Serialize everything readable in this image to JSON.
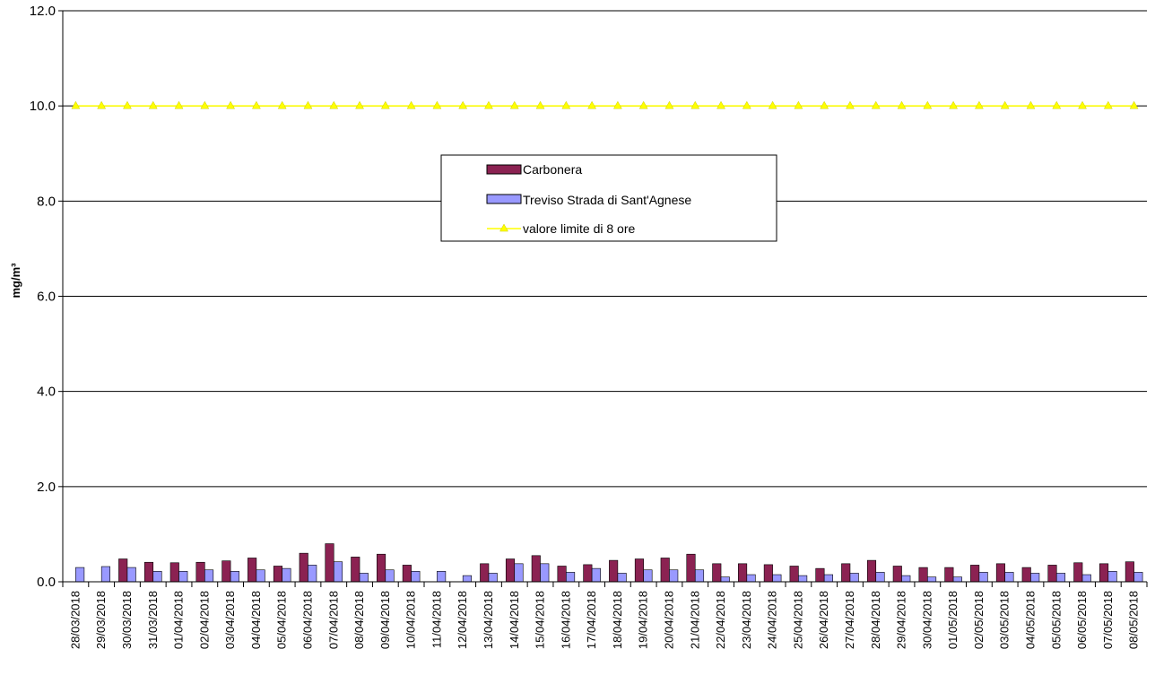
{
  "chart_data": {
    "type": "bar",
    "ylabel": "mg/m³",
    "ylim": [
      0,
      12
    ],
    "yticks": [
      "0.0",
      "2.0",
      "4.0",
      "6.0",
      "8.0",
      "10.0",
      "12.0"
    ],
    "grid": true,
    "legend_position": "top-center",
    "categories": [
      "28/03/2018",
      "29/03/2018",
      "30/03/2018",
      "31/03/2018",
      "01/04/2018",
      "02/04/2018",
      "03/04/2018",
      "04/04/2018",
      "05/04/2018",
      "06/04/2018",
      "07/04/2018",
      "08/04/2018",
      "09/04/2018",
      "10/04/2018",
      "11/04/2018",
      "12/04/2018",
      "13/04/2018",
      "14/04/2018",
      "15/04/2018",
      "16/04/2018",
      "17/04/2018",
      "18/04/2018",
      "19/04/2018",
      "20/04/2018",
      "21/04/2018",
      "22/04/2018",
      "23/04/2018",
      "24/04/2018",
      "25/04/2018",
      "26/04/2018",
      "27/04/2018",
      "28/04/2018",
      "29/04/2018",
      "30/04/2018",
      "01/05/2018",
      "02/05/2018",
      "03/05/2018",
      "04/05/2018",
      "05/05/2018",
      "06/05/2018",
      "07/05/2018",
      "08/05/2018"
    ],
    "series": [
      {
        "name": "Carbonera",
        "kind": "bar",
        "color": "#8B2252",
        "values": [
          null,
          null,
          0.48,
          0.41,
          0.4,
          0.41,
          0.44,
          0.5,
          0.33,
          0.6,
          0.8,
          0.52,
          0.58,
          0.35,
          null,
          null,
          0.38,
          0.48,
          0.55,
          0.33,
          0.36,
          0.45,
          0.48,
          0.5,
          0.58,
          0.38,
          0.38,
          0.36,
          0.33,
          0.28,
          0.38,
          0.45,
          0.33,
          0.3,
          0.3,
          0.35,
          0.38,
          0.3,
          0.35,
          0.4,
          0.38,
          0.42
        ]
      },
      {
        "name": "Treviso Strada di Sant'Agnese",
        "kind": "bar",
        "color": "#9999FF",
        "values": [
          0.3,
          0.32,
          0.3,
          0.22,
          0.22,
          0.25,
          0.22,
          0.25,
          0.28,
          0.35,
          0.42,
          0.18,
          0.25,
          0.22,
          0.22,
          0.13,
          0.18,
          0.38,
          0.38,
          0.2,
          0.28,
          0.18,
          0.25,
          0.25,
          0.25,
          0.1,
          0.15,
          0.15,
          0.13,
          0.15,
          0.18,
          0.2,
          0.13,
          0.1,
          0.1,
          0.2,
          0.2,
          0.18,
          0.18,
          0.15,
          0.22,
          0.2
        ]
      },
      {
        "name": "valore limite di 8 ore",
        "kind": "line",
        "color": "#FFFF00",
        "values": [
          10,
          10,
          10,
          10,
          10,
          10,
          10,
          10,
          10,
          10,
          10,
          10,
          10,
          10,
          10,
          10,
          10,
          10,
          10,
          10,
          10,
          10,
          10,
          10,
          10,
          10,
          10,
          10,
          10,
          10,
          10,
          10,
          10,
          10,
          10,
          10,
          10,
          10,
          10,
          10,
          10,
          10
        ]
      }
    ]
  }
}
